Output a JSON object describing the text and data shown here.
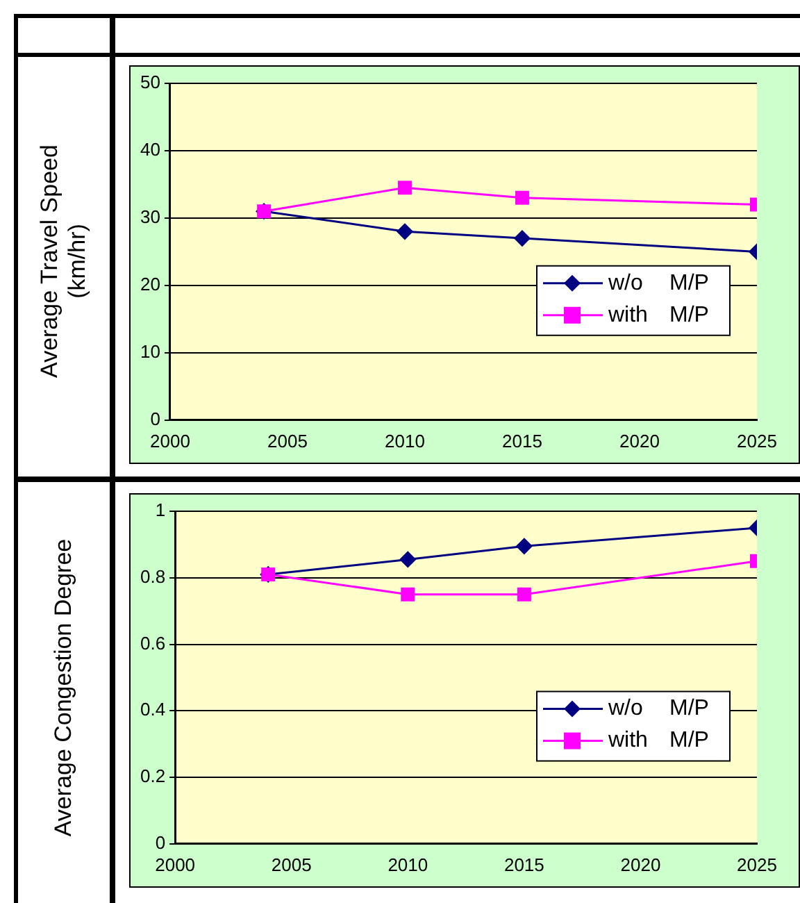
{
  "chart_data": [
    {
      "type": "line",
      "ylabel": "Average Travel Speed\n(km/hr)",
      "x": [
        2004,
        2010,
        2015,
        2025
      ],
      "xlim": [
        2000,
        2025
      ],
      "xticks": [
        2000,
        2005,
        2010,
        2015,
        2020,
        2025
      ],
      "ylim": [
        0,
        50
      ],
      "yticks": [
        0,
        10,
        20,
        30,
        40,
        50
      ],
      "grid": "y",
      "legend": "right",
      "series": [
        {
          "name": "w/o   M/P",
          "color": "#000080",
          "marker": "diamond",
          "values": [
            31,
            28,
            27,
            25
          ]
        },
        {
          "name": "with  M/P",
          "color": "#ff00ff",
          "marker": "square",
          "values": [
            31,
            34.5,
            33,
            32
          ]
        }
      ]
    },
    {
      "type": "line",
      "ylabel": "Average Congestion Degree",
      "x": [
        2004,
        2010,
        2015,
        2025
      ],
      "xlim": [
        2000,
        2025
      ],
      "xticks": [
        2000,
        2005,
        2010,
        2015,
        2020,
        2025
      ],
      "ylim": [
        0,
        1
      ],
      "yticks": [
        0,
        0.2,
        0.4,
        0.6,
        0.8,
        1
      ],
      "grid": "y",
      "legend": "right",
      "series": [
        {
          "name": "w/o   M/P",
          "color": "#000080",
          "marker": "diamond",
          "values": [
            0.81,
            0.855,
            0.895,
            0.95
          ]
        },
        {
          "name": "with  M/P",
          "color": "#ff00ff",
          "marker": "square",
          "values": [
            0.81,
            0.75,
            0.75,
            0.85
          ]
        }
      ]
    }
  ]
}
